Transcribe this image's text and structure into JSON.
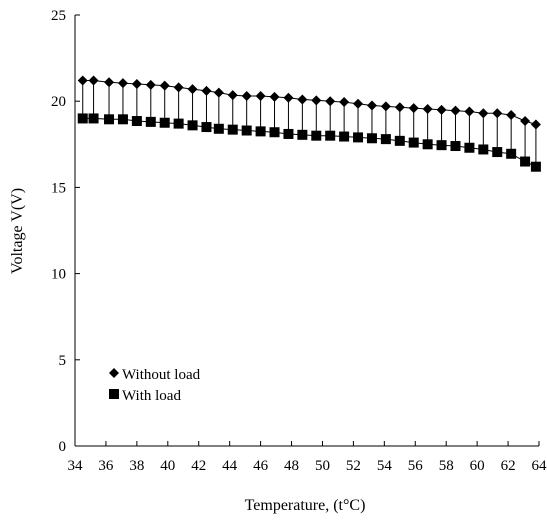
{
  "chart_data": {
    "type": "line",
    "xlabel": "Temperature, (t°C)",
    "ylabel": "Voltage V(V)",
    "xlim": [
      34,
      64
    ],
    "ylim": [
      0,
      25
    ],
    "x_ticks": [
      "34",
      "36",
      "38",
      "40",
      "42",
      "44",
      "46",
      "48",
      "50",
      "52",
      "54",
      "56",
      "58",
      "60",
      "62",
      "64"
    ],
    "y_ticks": [
      "0",
      "5",
      "10",
      "15",
      "20",
      "25"
    ],
    "grid": false,
    "legend_position": "lower-left",
    "error_bars": "vertical line from each 'With load' point up to the corresponding 'Without load' point",
    "x": [
      34.5,
      35.2,
      36.2,
      37.1,
      38.0,
      38.9,
      39.8,
      40.7,
      41.6,
      42.5,
      43.3,
      44.2,
      45.1,
      46.0,
      46.9,
      47.8,
      48.7,
      49.6,
      50.5,
      51.4,
      52.3,
      53.2,
      54.1,
      55.0,
      55.9,
      56.8,
      57.7,
      58.6,
      59.5,
      60.4,
      61.3,
      62.2,
      63.1,
      63.8
    ],
    "series": [
      {
        "name": "Without load",
        "marker": "diamond",
        "values": [
          21.2,
          21.2,
          21.1,
          21.05,
          21.0,
          20.95,
          20.9,
          20.8,
          20.7,
          20.6,
          20.5,
          20.35,
          20.3,
          20.3,
          20.25,
          20.2,
          20.1,
          20.05,
          20.0,
          19.95,
          19.85,
          19.75,
          19.7,
          19.65,
          19.6,
          19.55,
          19.5,
          19.45,
          19.4,
          19.3,
          19.3,
          19.2,
          18.85,
          18.65
        ]
      },
      {
        "name": "With load",
        "marker": "square",
        "values": [
          19.0,
          19.0,
          18.95,
          18.95,
          18.85,
          18.8,
          18.75,
          18.7,
          18.6,
          18.5,
          18.4,
          18.35,
          18.3,
          18.25,
          18.2,
          18.1,
          18.05,
          18.0,
          18.0,
          17.95,
          17.9,
          17.85,
          17.8,
          17.7,
          17.6,
          17.5,
          17.45,
          17.4,
          17.3,
          17.2,
          17.05,
          16.95,
          16.5,
          16.2
        ]
      }
    ]
  },
  "colors": {
    "line": "#000000",
    "background": "#ffffff"
  }
}
